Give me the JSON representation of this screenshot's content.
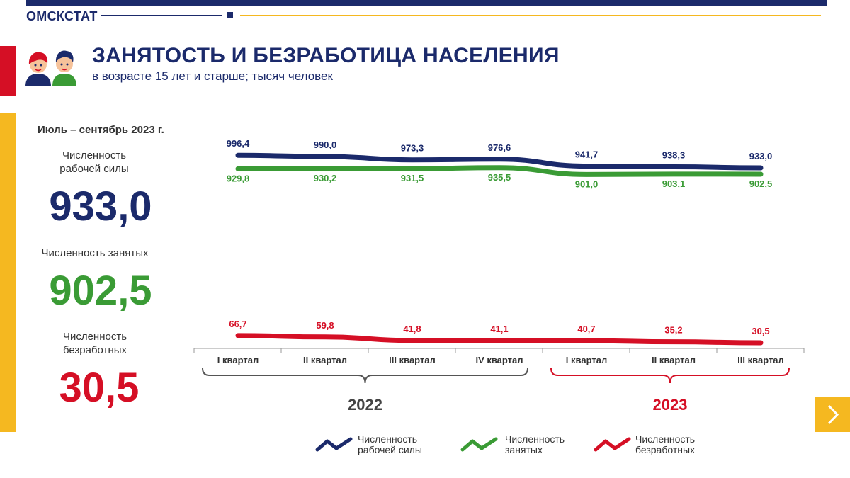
{
  "header": {
    "brand": "ОМСКСТАТ"
  },
  "title": "ЗАНЯТОСТЬ И БЕЗРАБОТИЦА НАСЕЛЕНИЯ",
  "subtitle": "в возрасте 15 лет и старше; тысяч человек",
  "summary": {
    "period": "Июль – сентябрь 2023 г.",
    "labor_force": {
      "label_line1": "Численность",
      "label_line2": "рабочей силы",
      "value": "933,0"
    },
    "employed": {
      "label": "Численность занятых",
      "value": "902,5"
    },
    "unemployed": {
      "label_line1": "Численность",
      "label_line2": "безработных",
      "value": "30,5"
    }
  },
  "legend": [
    {
      "line1": "Численность",
      "line2": "рабочей силы"
    },
    {
      "line1": "Численность",
      "line2": "занятых"
    },
    {
      "line1": "Численность",
      "line2": "безработных"
    }
  ],
  "colors": {
    "navy": "#1b2a6b",
    "green": "#3a9b35",
    "red": "#d50f25",
    "gold": "#f5b820"
  },
  "icons": {
    "people": "people-icon",
    "next": "chevron-right-icon"
  },
  "chart_data": {
    "type": "line",
    "categories": [
      "I квартал",
      "II квартал",
      "III квартал",
      "IV квартал",
      "I квартал",
      "II квартал",
      "III квартал"
    ],
    "years": [
      {
        "label": "2022",
        "from": 0,
        "to": 3
      },
      {
        "label": "2023",
        "from": 4,
        "to": 6
      }
    ],
    "series": [
      {
        "name": "Численность рабочей силы",
        "color": "#1b2a6b",
        "values": [
          996.4,
          990.0,
          973.3,
          976.6,
          941.7,
          938.3,
          933.0
        ],
        "labels": [
          "996,4",
          "990,0",
          "973,3",
          "976,6",
          "941,7",
          "938,3",
          "933,0"
        ]
      },
      {
        "name": "Численность занятых",
        "color": "#3a9b35",
        "values": [
          929.8,
          930.2,
          931.5,
          935.5,
          901.0,
          903.1,
          902.5
        ],
        "labels": [
          "929,8",
          "930,2",
          "931,5",
          "935,5",
          "901,0",
          "903,1",
          "902,5"
        ]
      },
      {
        "name": "Численность безработных",
        "color": "#d50f25",
        "values": [
          66.7,
          59.8,
          41.8,
          41.1,
          40.7,
          35.2,
          30.5
        ],
        "labels": [
          "66,7",
          "59,8",
          "41,8",
          "41,1",
          "40,7",
          "35,2",
          "30,5"
        ]
      }
    ],
    "legend_position": "bottom"
  }
}
